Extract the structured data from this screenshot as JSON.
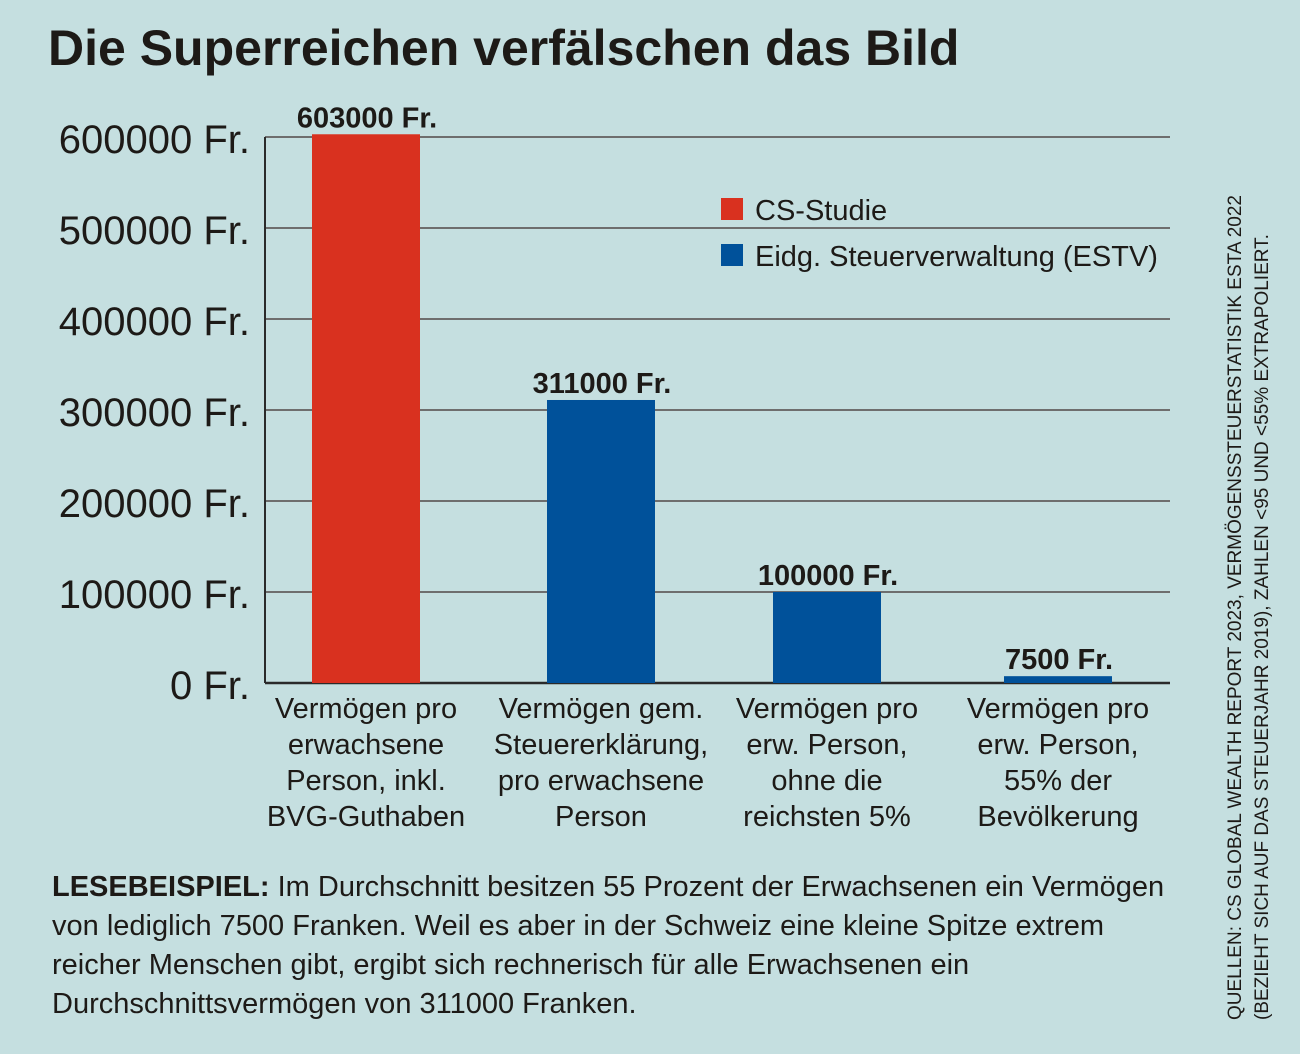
{
  "chart_data": {
    "type": "bar",
    "title": "Die Superreichen verfälschen das Bild",
    "categories": [
      [
        "Vermögen pro",
        "erwachsene",
        "Person, inkl.",
        "BVG-Guthaben"
      ],
      [
        "Vermögen gem.",
        "Steuererklärung,",
        "pro erwachsene",
        "Person"
      ],
      [
        "Vermögen pro",
        "erw. Person,",
        "ohne die",
        "reichsten 5%"
      ],
      [
        "Vermögen pro",
        "erw. Person,",
        "55% der",
        "Bevölkerung"
      ]
    ],
    "values": [
      603000,
      311000,
      100000,
      7500
    ],
    "value_labels": [
      "603000 Fr.",
      "311000 Fr.",
      "100000 Fr.",
      "7500 Fr."
    ],
    "series_of_bar": [
      "CS-Studie",
      "Eidg. Steuerverwaltung (ESTV)",
      "Eidg. Steuerverwaltung (ESTV)",
      "Eidg. Steuerverwaltung (ESTV)"
    ],
    "legend": [
      {
        "name": "CS-Studie",
        "color": "#d9311f"
      },
      {
        "name": "Eidg. Steuerverwaltung (ESTV)",
        "color": "#00519a"
      }
    ],
    "legend_position": "top-right",
    "ylim": [
      0,
      600000
    ],
    "yticks": [
      0,
      100000,
      200000,
      300000,
      400000,
      500000,
      600000
    ],
    "ytick_labels": [
      "0 Fr.",
      "100000 Fr.",
      "200000 Fr.",
      "300000 Fr.",
      "400000 Fr.",
      "500000 Fr.",
      "600000 Fr."
    ],
    "grid": true,
    "xlabel": "",
    "ylabel": ""
  },
  "note": {
    "lead": "LESEBEISPIEL:",
    "text": " Im Durchschnitt besitzen 55 Prozent der Erwachsenen ein Vermögen von lediglich 7500 Franken. Weil es aber in der Schweiz eine kleine Spitze extrem reicher Menschen gibt, ergibt sich rechnerisch für alle Erwachsenen ein Durchschnittsvermögen von 311000 Franken."
  },
  "source": {
    "line1": "QUELLEN: CS GLOBAL WEALTH REPORT 2023, VERMÖGENSSTEUERSTATISTIK ESTA 2022",
    "line2": "(BEZIEHT SICH AUF DAS STEUERJAHR 2019), ZAHLEN <95 UND <55% EXTRAPOLIERT."
  }
}
